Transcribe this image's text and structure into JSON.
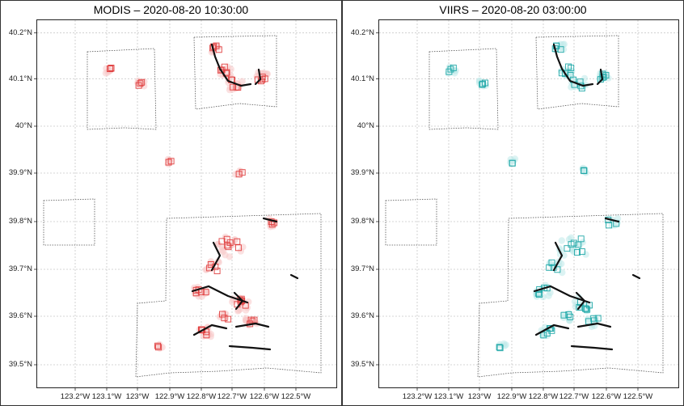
{
  "panels": [
    {
      "title": "MODIS – 2020-08-20 10:30:00",
      "color": "#e04040",
      "fill": "#f8c8c8"
    },
    {
      "title": "VIIRS – 2020-08-20 03:00:00",
      "color": "#20a8a8",
      "fill": "#bfeaea"
    }
  ],
  "lat_labels": [
    "40.2°N",
    "40.1°N",
    "40°N",
    "39.9°N",
    "39.8°N",
    "39.7°N",
    "39.6°N",
    "39.5°N"
  ],
  "lon_labels": [
    "123.2°W",
    "123.1°W",
    "123°W",
    "122.9°W",
    "122.8°W",
    "122.7°W",
    "122.6°W",
    "122.5°W"
  ]
}
